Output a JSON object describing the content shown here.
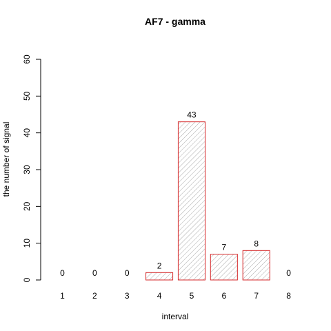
{
  "chart_data": {
    "type": "bar",
    "title": "AF7  -  gamma",
    "xlabel": "interval",
    "ylabel": "the number of signal",
    "categories": [
      "1",
      "2",
      "3",
      "4",
      "5",
      "6",
      "7",
      "8"
    ],
    "values": [
      0,
      0,
      0,
      2,
      43,
      7,
      8,
      0
    ],
    "data_labels": [
      "0",
      "0",
      "0",
      "2",
      "43",
      "7",
      "8",
      "0"
    ],
    "ylim": [
      0,
      60
    ],
    "yticks": [
      "0",
      "10",
      "20",
      "30",
      "40",
      "50",
      "60"
    ],
    "grid": false,
    "legend": "none",
    "bar_fill": "hatched light gray",
    "colors": {
      "bar_border": "#d62728",
      "hatch": "#a9a9a9",
      "axis": "#000000"
    }
  }
}
